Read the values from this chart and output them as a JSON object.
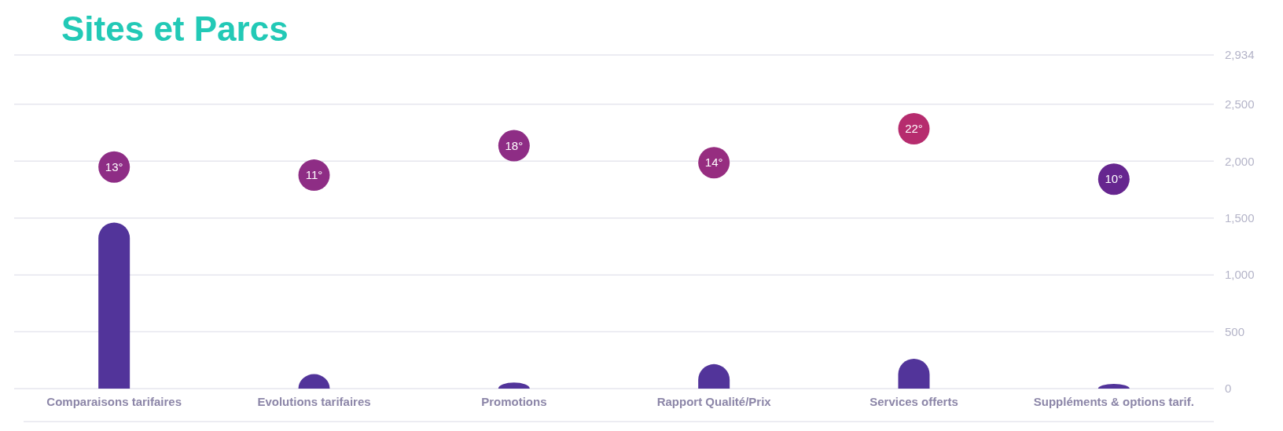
{
  "chart_data": {
    "type": "bar",
    "title": "Sites et Parcs",
    "categories": [
      "Comparaisons tarifaires",
      "Evolutions tarifaires",
      "Promotions",
      "Rapport Qualité/Prix",
      "Services offerts",
      "Suppléments & options tarif."
    ],
    "series": [
      {
        "color": "#52349a",
        "values": [
          1460,
          127,
          54,
          215,
          263,
          41
        ]
      },
      {
        "type": "scatter",
        "marker": "circle",
        "colors": [
          "#8e2d85",
          "#8e2d85",
          "#8e2d85",
          "#962d80",
          "#b62c6e",
          "#66268f"
        ],
        "values": [
          1949,
          1877,
          2136,
          1987,
          2285,
          1842
        ]
      }
    ],
    "annotations": [
      {
        "text": "13°",
        "x": "Comparaisons tarifaires",
        "y": 1949
      },
      {
        "text": "11°",
        "x": "Evolutions tarifaires",
        "y": 1877
      },
      {
        "text": "18°",
        "x": "Promotions",
        "y": 2136
      },
      {
        "text": "14°",
        "x": "Rapport Qualité/Prix",
        "y": 1987
      },
      {
        "text": "22°",
        "x": "Services offerts",
        "y": 2285
      },
      {
        "text": "10°",
        "x": "Suppléments & options tarif.",
        "y": 1842
      }
    ],
    "ylim": [
      0,
      2934
    ],
    "yticks": [
      0,
      {
        "value": 500,
        "label": "500"
      },
      {
        "value": 1000,
        "label": "1,000"
      },
      {
        "value": 1500,
        "label": "1,500"
      },
      {
        "value": 2000,
        "label": "2,000"
      },
      {
        "value": 2500,
        "label": "2,500"
      },
      {
        "value": 2934,
        "label": "2,934"
      }
    ],
    "grid": "y"
  }
}
